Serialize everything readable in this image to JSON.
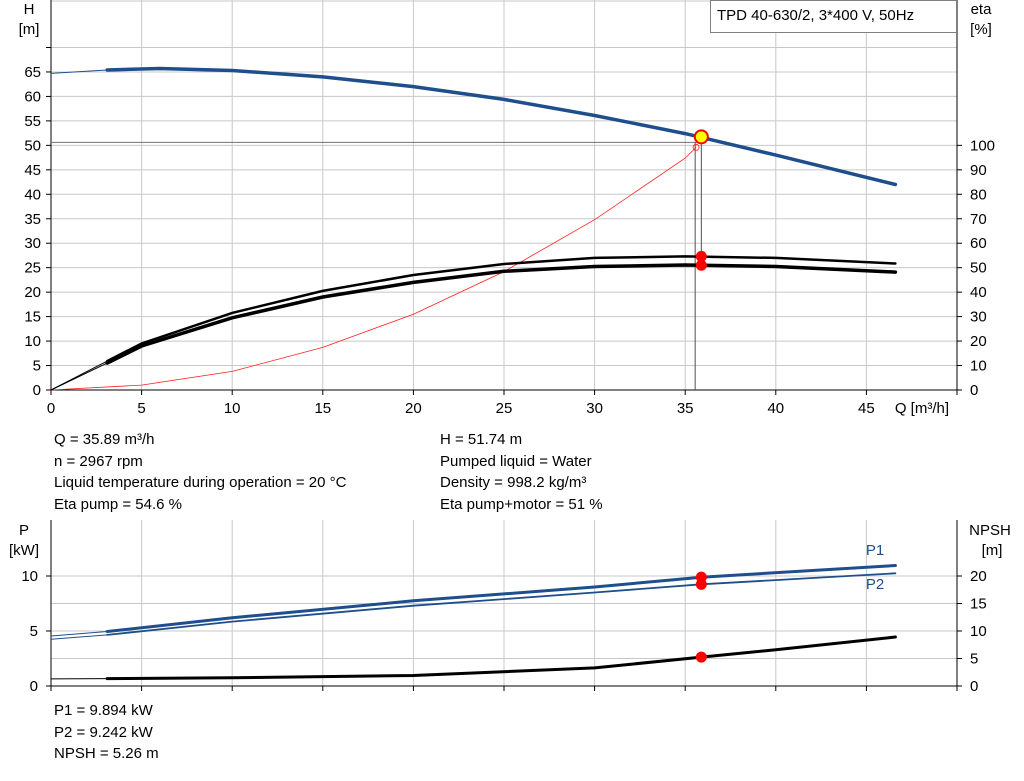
{
  "chart_data": [
    {
      "type": "line",
      "title": "TPD 40-630/2, 3*400 V, 50Hz",
      "xlabel": "Q [m³/h]",
      "ylabel": "H [m]",
      "ylabel_parts": [
        "H",
        "[m]"
      ],
      "y2label": "eta [%]",
      "y2label_parts": [
        "eta",
        "[%]"
      ],
      "xlim": [
        0,
        50
      ],
      "ylim": [
        0,
        70
      ],
      "y2lim": [
        0,
        140
      ],
      "x_ticks": [
        0,
        5,
        10,
        15,
        20,
        25,
        30,
        35,
        40,
        45
      ],
      "y_ticks": [
        0,
        5,
        10,
        15,
        20,
        25,
        30,
        35,
        40,
        45,
        50,
        55,
        60,
        65
      ],
      "y2_ticks": [
        0,
        10,
        20,
        30,
        40,
        50,
        60,
        70,
        80,
        90,
        100
      ],
      "grid": true,
      "series": [
        {
          "color": "#1f4e8c",
          "axis": "left",
          "x": [
            0,
            3.1,
            6,
            10,
            15,
            20,
            25,
            30,
            35,
            40,
            46.6
          ],
          "y": [
            64.7,
            65.4,
            65.7,
            65.3,
            64.0,
            62.0,
            59.4,
            56.1,
            52.4,
            48.0,
            42.0
          ]
        },
        {
          "color": "#000000",
          "axis": "right",
          "x": [
            0,
            3.1,
            5,
            10,
            15,
            20,
            25,
            30,
            35,
            40,
            46.6
          ],
          "y": [
            0,
            11.8,
            19,
            31.5,
            40.5,
            47,
            51.5,
            54,
            54.6,
            54,
            51.7
          ]
        },
        {
          "color": "#000000",
          "axis": "right",
          "x": [
            0,
            3.1,
            5,
            10,
            15,
            20,
            25,
            30,
            35,
            40,
            46.6
          ],
          "y": [
            0,
            11,
            18,
            29.5,
            38,
            44,
            48.5,
            50.5,
            51.1,
            50.5,
            48.2
          ]
        },
        {
          "color": "#ff2020",
          "axis": "left",
          "x": [
            0,
            5,
            10,
            15,
            20,
            25,
            30,
            35,
            35.6
          ],
          "y": [
            0,
            1.0,
            3.8,
            8.7,
            15.5,
            24.2,
            34.8,
            47.4,
            49.6
          ]
        }
      ],
      "duty_point": {
        "q": 35.89,
        "h": 51.74,
        "eta_pump": 54.6,
        "eta_total": 51
      },
      "marker_color": "#ff0000",
      "duty_marker_fill": "#ffff00"
    },
    {
      "type": "line",
      "xlim": [
        0,
        50
      ],
      "ylabel": "P [kW]",
      "ylabel_parts": [
        "P",
        "[kW]"
      ],
      "y2label": "NPSH [m]",
      "y2label_parts": [
        "NPSH",
        "[m]"
      ],
      "ylim": [
        0,
        12
      ],
      "y2lim": [
        0,
        24
      ],
      "y_ticks": [
        0,
        5,
        10
      ],
      "y2_ticks": [
        0,
        5,
        10,
        15,
        20
      ],
      "grid": true,
      "series": [
        {
          "name": "P1",
          "color": "#1f4e8c",
          "axis": "left",
          "x": [
            0,
            3.1,
            10,
            20,
            30,
            35.89,
            46.6
          ],
          "y": [
            4.55,
            4.95,
            6.2,
            7.75,
            9.0,
            9.894,
            10.95
          ]
        },
        {
          "name": "P2",
          "color": "#1f4e8c",
          "axis": "left",
          "x": [
            0,
            3.1,
            10,
            20,
            30,
            35.89,
            46.6
          ],
          "y": [
            4.25,
            4.65,
            5.85,
            7.3,
            8.5,
            9.242,
            10.25
          ]
        },
        {
          "color": "#000000",
          "axis": "right",
          "x": [
            0,
            3.1,
            10,
            20,
            30,
            35.89,
            40,
            46.6
          ],
          "y": [
            1.3,
            1.35,
            1.5,
            1.9,
            3.3,
            5.26,
            6.6,
            8.9
          ]
        }
      ],
      "marker_color": "#ff0000"
    }
  ],
  "info": {
    "left": [
      "Q = 35.89 m³/h",
      "n = 2967 rpm",
      "Liquid temperature during operation = 20 °C",
      "Eta pump = 54.6 %"
    ],
    "right": [
      "H = 51.74 m",
      "Pumped liquid = Water",
      "Density = 998.2 kg/m³",
      "Eta pump+motor = 51 %"
    ],
    "bottom": [
      "P1 = 9.894 kW",
      "P2 = 9.242 kW",
      "NPSH = 5.26 m"
    ]
  }
}
